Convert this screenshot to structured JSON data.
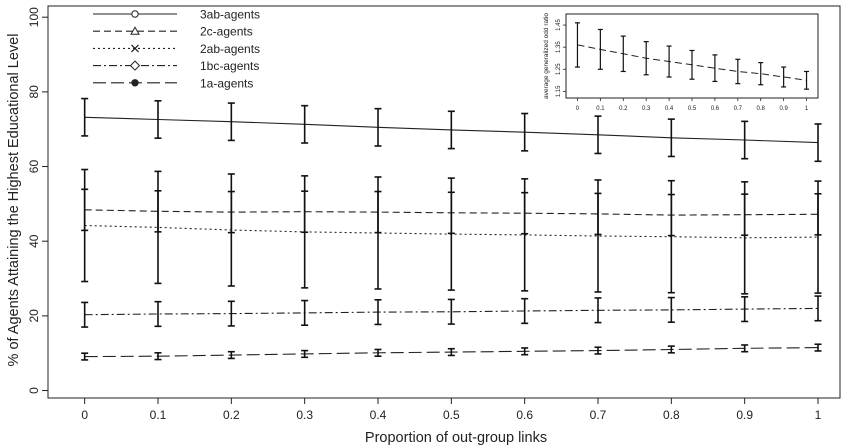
{
  "chart_data": [
    {
      "type": "line",
      "title": "",
      "xlabel": "Proportion of out-group links",
      "ylabel": "% of Agents Attaining the Highest Educational Level",
      "xlim": [
        -0.05,
        1.03
      ],
      "ylim": [
        -2,
        103
      ],
      "x_ticks": [
        "0",
        "0.1",
        "0.2",
        "0.3",
        "0.4",
        "0.5",
        "0.6",
        "0.7",
        "0.8",
        "0.9",
        "1"
      ],
      "y_ticks": [
        "0",
        "20",
        "40",
        "60",
        "80",
        "100"
      ],
      "grid": false,
      "legend_position": "top-left",
      "x": [
        0,
        0.1,
        0.2,
        0.3,
        0.4,
        0.5,
        0.6,
        0.7,
        0.8,
        0.9,
        1.0
      ],
      "series": [
        {
          "name": "3ab-agents",
          "line_style": "solid",
          "marker": "circle",
          "values": [
            73.2,
            72.6,
            72.0,
            71.3,
            70.5,
            69.8,
            69.2,
            68.5,
            67.7,
            67.1,
            66.4
          ],
          "error": [
            5.0,
            5.0,
            5.0,
            5.0,
            5.0,
            5.0,
            5.0,
            5.0,
            5.0,
            5.0,
            5.0
          ]
        },
        {
          "name": "2c-agents",
          "line_style": "dashed",
          "marker": "triangle",
          "values": [
            48.4,
            48.0,
            47.8,
            47.9,
            47.8,
            47.6,
            47.5,
            47.3,
            47.0,
            47.1,
            47.2
          ],
          "error": [
            5.5,
            5.5,
            5.5,
            5.5,
            5.5,
            5.5,
            5.5,
            5.5,
            5.5,
            5.5,
            5.5
          ]
        },
        {
          "name": "2ab-agents",
          "line_style": "dotted",
          "marker": "cross",
          "values": [
            44.2,
            43.7,
            43.0,
            42.5,
            42.2,
            41.9,
            41.7,
            41.4,
            41.2,
            40.9,
            41.1
          ],
          "error": [
            15.0,
            15.0,
            15.0,
            15.0,
            15.0,
            15.0,
            15.0,
            15.0,
            15.0,
            15.0,
            15.0
          ]
        },
        {
          "name": "1bc-agents",
          "line_style": "dashdot",
          "marker": "diamond",
          "values": [
            20.3,
            20.5,
            20.6,
            20.8,
            21.0,
            21.1,
            21.3,
            21.5,
            21.6,
            21.8,
            22.0
          ],
          "error": [
            3.3,
            3.3,
            3.3,
            3.3,
            3.3,
            3.3,
            3.3,
            3.3,
            3.3,
            3.3,
            3.3
          ]
        },
        {
          "name": "1a-agents",
          "line_style": "longdash",
          "marker": "filled-circle",
          "values": [
            9.1,
            9.2,
            9.5,
            9.8,
            10.1,
            10.3,
            10.5,
            10.7,
            11.0,
            11.3,
            11.5
          ],
          "error": [
            0.9,
            0.9,
            0.9,
            0.9,
            0.9,
            0.9,
            0.9,
            0.9,
            0.9,
            0.9,
            0.9
          ]
        }
      ]
    },
    {
      "type": "line",
      "title": "",
      "xlabel": "",
      "ylabel": "average generalized odd ratio",
      "xlim": [
        -0.05,
        1.05
      ],
      "ylim": [
        1.12,
        1.5
      ],
      "x_ticks": [
        "0",
        "0.1",
        "0.2",
        "0.3",
        "0.4",
        "0.5",
        "0.6",
        "0.7",
        "0.8",
        "0.9",
        "1"
      ],
      "y_ticks": [
        "1.15",
        "1.25",
        "1.35",
        "1.45"
      ],
      "grid": false,
      "x": [
        0,
        0.1,
        0.2,
        0.3,
        0.4,
        0.5,
        0.6,
        0.7,
        0.8,
        0.9,
        1.0
      ],
      "series": [
        {
          "line_style": "dashed",
          "values": [
            1.36,
            1.34,
            1.32,
            1.3,
            1.285,
            1.27,
            1.255,
            1.24,
            1.23,
            1.215,
            1.2
          ],
          "error": [
            0.1,
            0.09,
            0.08,
            0.075,
            0.07,
            0.065,
            0.06,
            0.055,
            0.05,
            0.045,
            0.04
          ]
        }
      ]
    }
  ]
}
